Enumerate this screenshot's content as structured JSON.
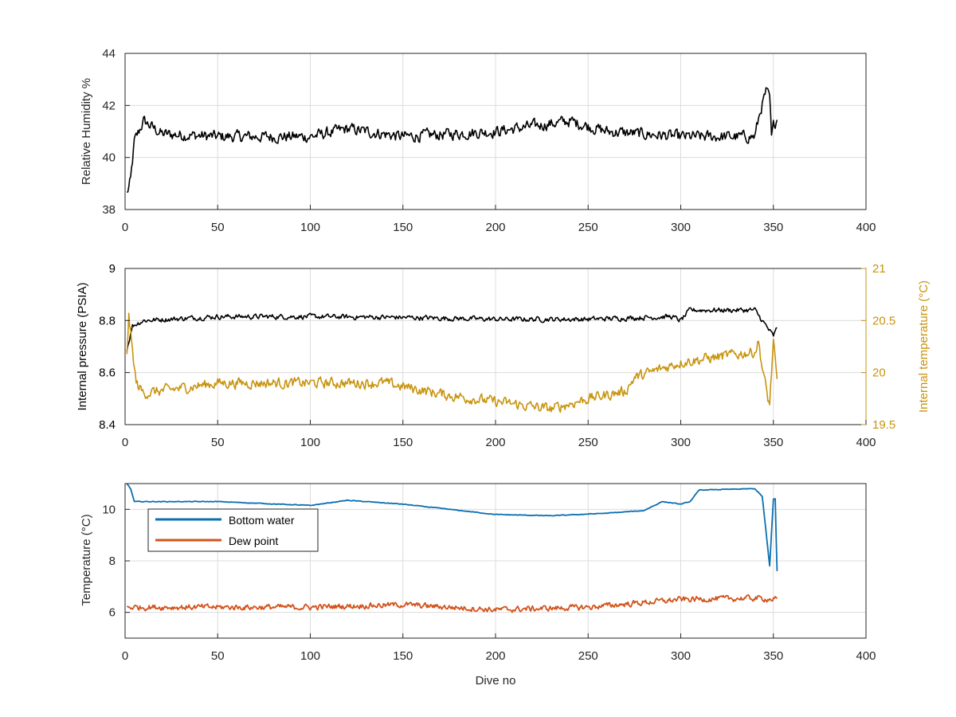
{
  "figure": {
    "xlabel": "Dive no",
    "colors": {
      "axis": "#262626",
      "grid": "#dcdcdc",
      "humidity": "#000000",
      "pressure": "#000000",
      "internal_temp": "#c8940e",
      "bottom_water": "#0b6fb0",
      "dew_point": "#d2531c"
    }
  },
  "chart_data": [
    {
      "id": "humidity",
      "type": "line",
      "ylabel": "Relative Humidity %",
      "xlim": [
        0,
        400
      ],
      "ylim": [
        38,
        44
      ],
      "xticks": [
        0,
        50,
        100,
        150,
        200,
        250,
        300,
        350,
        400
      ],
      "yticks": [
        38,
        40,
        42,
        44
      ],
      "grid": true,
      "series": [
        {
          "color_key": "humidity",
          "noise": 0.35,
          "anchors": [
            [
              1,
              38.6
            ],
            [
              3,
              39.1
            ],
            [
              5,
              40.6
            ],
            [
              10,
              41.4
            ],
            [
              20,
              40.9
            ],
            [
              50,
              40.8
            ],
            [
              100,
              40.8
            ],
            [
              120,
              41.1
            ],
            [
              150,
              40.8
            ],
            [
              200,
              41.0
            ],
            [
              240,
              41.4
            ],
            [
              260,
              41.0
            ],
            [
              300,
              40.8
            ],
            [
              340,
              40.8
            ],
            [
              343,
              41.8
            ],
            [
              346,
              42.5
            ],
            [
              348,
              42.3
            ],
            [
              349,
              40.7
            ],
            [
              350,
              41.2
            ],
            [
              352,
              41.5
            ]
          ]
        }
      ]
    },
    {
      "id": "pressure",
      "type": "line",
      "ylabel": "Internal pressure (PSIA)",
      "ylabel_right": "Internal temperature (°C)",
      "xlim": [
        0,
        400
      ],
      "ylim": [
        8.4,
        9
      ],
      "ylim_right": [
        19.5,
        21
      ],
      "xticks": [
        0,
        50,
        100,
        150,
        200,
        250,
        300,
        350,
        400
      ],
      "yticks": [
        8.4,
        8.6,
        8.8,
        9
      ],
      "yticks_right": [
        19.5,
        20,
        20.5,
        21
      ],
      "grid": true,
      "series": [
        {
          "color_key": "pressure",
          "axis": "left",
          "noise": 0.015,
          "anchors": [
            [
              1,
              8.69
            ],
            [
              4,
              8.78
            ],
            [
              10,
              8.8
            ],
            [
              50,
              8.815
            ],
            [
              100,
              8.815
            ],
            [
              150,
              8.812
            ],
            [
              200,
              8.805
            ],
            [
              250,
              8.805
            ],
            [
              295,
              8.815
            ],
            [
              300,
              8.8
            ],
            [
              305,
              8.84
            ],
            [
              340,
              8.84
            ],
            [
              344,
              8.8
            ],
            [
              348,
              8.76
            ],
            [
              350,
              8.74
            ],
            [
              352,
              8.77
            ]
          ]
        },
        {
          "color_key": "internal_temp",
          "axis": "right",
          "noise": 0.08,
          "anchors": [
            [
              1,
              20.2
            ],
            [
              2,
              20.55
            ],
            [
              4,
              20.2
            ],
            [
              6,
              19.9
            ],
            [
              10,
              19.8
            ],
            [
              50,
              19.9
            ],
            [
              100,
              19.9
            ],
            [
              140,
              19.9
            ],
            [
              175,
              19.78
            ],
            [
              200,
              19.72
            ],
            [
              230,
              19.65
            ],
            [
              250,
              19.75
            ],
            [
              270,
              19.82
            ],
            [
              275,
              19.95
            ],
            [
              300,
              20.1
            ],
            [
              340,
              20.2
            ],
            [
              342,
              20.3
            ],
            [
              344,
              20.05
            ],
            [
              347,
              19.75
            ],
            [
              348,
              19.7
            ],
            [
              350,
              20.3
            ],
            [
              352,
              19.9
            ]
          ]
        }
      ]
    },
    {
      "id": "temperature",
      "type": "line",
      "ylabel": "Temperature (°C)",
      "xlim": [
        0,
        400
      ],
      "ylim": [
        5,
        11
      ],
      "xticks": [
        0,
        50,
        100,
        150,
        200,
        250,
        300,
        350,
        400
      ],
      "yticks": [
        6,
        8,
        10
      ],
      "grid": true,
      "legend": "top-left",
      "series": [
        {
          "name": "Bottom water",
          "color_key": "bottom_water",
          "noise": 0.02,
          "anchors": [
            [
              1,
              11.0
            ],
            [
              3,
              10.8
            ],
            [
              5,
              10.3
            ],
            [
              50,
              10.3
            ],
            [
              100,
              10.15
            ],
            [
              120,
              10.35
            ],
            [
              150,
              10.2
            ],
            [
              200,
              9.8
            ],
            [
              230,
              9.75
            ],
            [
              260,
              9.85
            ],
            [
              280,
              9.95
            ],
            [
              290,
              10.3
            ],
            [
              300,
              10.2
            ],
            [
              305,
              10.3
            ],
            [
              310,
              10.75
            ],
            [
              340,
              10.8
            ],
            [
              344,
              10.5
            ],
            [
              348,
              7.8
            ],
            [
              350,
              10.4
            ],
            [
              351,
              10.4
            ],
            [
              352,
              7.6
            ]
          ]
        },
        {
          "name": "Dew point",
          "color_key": "dew_point",
          "noise": 0.17,
          "anchors": [
            [
              1,
              6.2
            ],
            [
              50,
              6.2
            ],
            [
              100,
              6.2
            ],
            [
              150,
              6.3
            ],
            [
              200,
              6.1
            ],
            [
              250,
              6.2
            ],
            [
              300,
              6.5
            ],
            [
              340,
              6.55
            ],
            [
              352,
              6.5
            ]
          ]
        }
      ]
    }
  ]
}
